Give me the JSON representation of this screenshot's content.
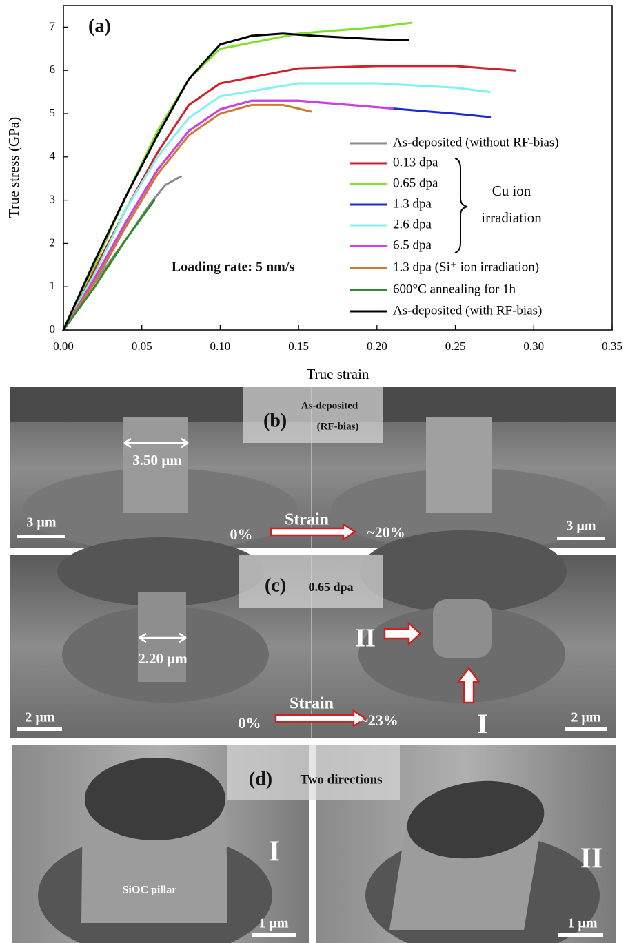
{
  "chart_data": {
    "type": "line",
    "title": "(a)",
    "xlabel": "True strain",
    "ylabel": "True stress (GPa)",
    "xlim": [
      0,
      0.35
    ],
    "ylim": [
      0,
      7.5
    ],
    "xticks": [
      {
        "value": 0,
        "label": "0.00"
      },
      {
        "value": 0.05,
        "label": "0.05"
      },
      {
        "value": 0.1,
        "label": "0.10"
      },
      {
        "value": 0.15,
        "label": "0.15"
      },
      {
        "value": 0.2,
        "label": "0.20"
      },
      {
        "value": 0.25,
        "label": "0.25"
      },
      {
        "value": 0.3,
        "label": "0.30"
      },
      {
        "value": 0.35,
        "label": "0.35"
      }
    ],
    "yticks": [
      0,
      1,
      2,
      3,
      4,
      5,
      6,
      7
    ],
    "grid": false,
    "annotations": [
      "Loading rate: 5 nm/s",
      "Cu ion",
      "irradiation"
    ],
    "series": [
      {
        "name": "As-deposited (without RF-bias)",
        "color": "#8a8a8a",
        "x": [
          0,
          0.02,
          0.04,
          0.055,
          0.065,
          0.075
        ],
        "values": [
          0,
          1.1,
          2.1,
          2.9,
          3.35,
          3.55
        ]
      },
      {
        "name": "0.13 dpa",
        "color": "#d0202a",
        "x": [
          0,
          0.02,
          0.04,
          0.06,
          0.08,
          0.1,
          0.15,
          0.2,
          0.25,
          0.288
        ],
        "values": [
          0,
          1.4,
          2.8,
          4.1,
          5.2,
          5.7,
          6.05,
          6.1,
          6.1,
          6.0
        ]
      },
      {
        "name": "0.65 dpa",
        "color": "#7de02a",
        "x": [
          0,
          0.02,
          0.04,
          0.06,
          0.08,
          0.1,
          0.15,
          0.2,
          0.222
        ],
        "values": [
          0,
          1.5,
          3.1,
          4.6,
          5.8,
          6.5,
          6.85,
          7.0,
          7.1
        ]
      },
      {
        "name": "1.3 dpa",
        "color": "#1a2bd0",
        "x": [
          0,
          0.02,
          0.04,
          0.06,
          0.08,
          0.1,
          0.12,
          0.15,
          0.2,
          0.25,
          0.272
        ],
        "values": [
          0,
          1.2,
          2.5,
          3.7,
          4.6,
          5.1,
          5.3,
          5.3,
          5.15,
          5.0,
          4.92
        ]
      },
      {
        "name": "2.6 dpa",
        "color": "#80f0f0",
        "x": [
          0,
          0.02,
          0.04,
          0.06,
          0.08,
          0.1,
          0.15,
          0.2,
          0.25,
          0.272
        ],
        "values": [
          0,
          1.3,
          2.8,
          4.0,
          4.9,
          5.4,
          5.7,
          5.7,
          5.6,
          5.5
        ]
      },
      {
        "name": "6.5 dpa",
        "color": "#d040e0",
        "x": [
          0,
          0.02,
          0.04,
          0.06,
          0.08,
          0.1,
          0.12,
          0.15,
          0.21
        ],
        "values": [
          0,
          1.2,
          2.5,
          3.7,
          4.6,
          5.1,
          5.3,
          5.3,
          5.12
        ]
      },
      {
        "name": "1.3 dpa (Si⁺ ion irradiation)",
        "color": "#d07a30",
        "x": [
          0,
          0.02,
          0.04,
          0.06,
          0.08,
          0.1,
          0.12,
          0.14,
          0.158
        ],
        "values": [
          0,
          1.1,
          2.4,
          3.6,
          4.5,
          5.0,
          5.2,
          5.2,
          5.05
        ]
      },
      {
        "name": "600°C annealing for 1h",
        "color": "#2e8b2e",
        "x": [
          0,
          0.02,
          0.04,
          0.058
        ],
        "values": [
          0,
          1.0,
          2.1,
          3.0
        ]
      },
      {
        "name": "As-deposited (with RF-bias)",
        "color": "#000000",
        "x": [
          0,
          0.02,
          0.04,
          0.06,
          0.08,
          0.1,
          0.12,
          0.14,
          0.16,
          0.2,
          0.22
        ],
        "values": [
          0,
          1.6,
          3.1,
          4.5,
          5.8,
          6.6,
          6.8,
          6.85,
          6.8,
          6.72,
          6.7
        ]
      }
    ]
  },
  "panels": {
    "b": {
      "label": "(b)",
      "condition": [
        "As-deposited",
        "(RF-bias)"
      ],
      "diameter": "3.50 µm",
      "scale_bar": "3 µm",
      "strain_start": "0%",
      "strain_word": "Strain",
      "strain_end": "~20%"
    },
    "c": {
      "label": "(c)",
      "condition": "0.65 dpa",
      "diameter": "2.20 µm",
      "scale_bar": "2 µm",
      "strain_start": "0%",
      "strain_word": "Strain",
      "strain_end": "~23%",
      "direction_1": "I",
      "direction_2": "II"
    },
    "d": {
      "label": "(d)",
      "condition": "Two directions",
      "pillar": "SiOC pillar",
      "scale_bar": "1 µm",
      "direction_1": "I",
      "direction_2": "II"
    }
  }
}
